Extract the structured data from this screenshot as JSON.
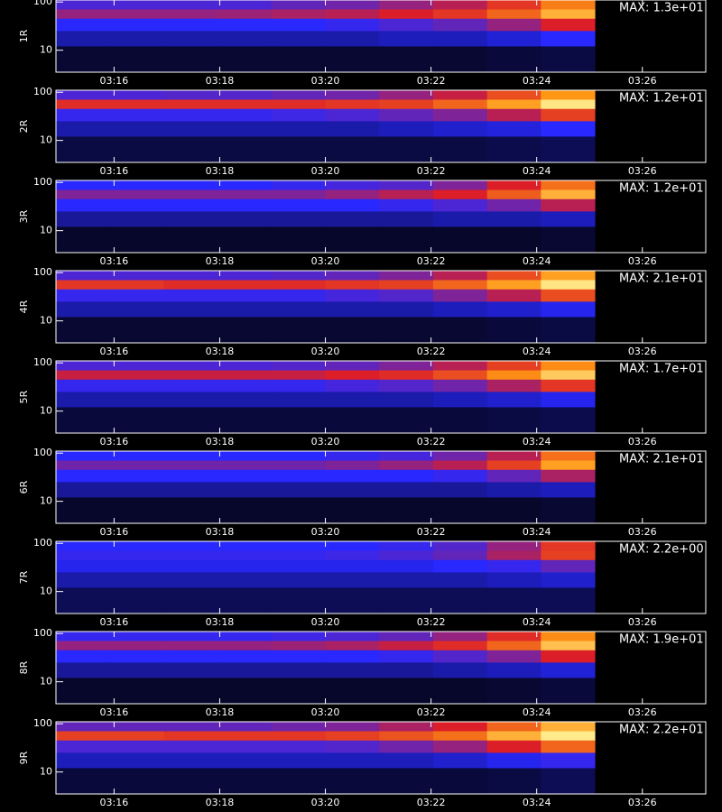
{
  "chart_data": {
    "type": "heatmap",
    "xlim": [
      14.9,
      27.2
    ],
    "xticks": [
      {
        "value": 16,
        "label": "03:16"
      },
      {
        "value": 18,
        "label": "03:18"
      },
      {
        "value": 20,
        "label": "03:20"
      },
      {
        "value": 22,
        "label": "03:22"
      },
      {
        "value": 24,
        "label": "03:24"
      },
      {
        "value": 26,
        "label": "03:26"
      }
    ],
    "ylim": [
      3.5,
      110
    ],
    "yticks": [
      10,
      100
    ],
    "log_y": true,
    "zlim": [
      0,
      1
    ],
    "x_edges": [
      14.9,
      15.92,
      16.94,
      17.96,
      18.98,
      20.0,
      21.02,
      22.04,
      23.06,
      24.08,
      25.1
    ],
    "y_edges": [
      110,
      70,
      45,
      25,
      12,
      3.5
    ],
    "panels": [
      {
        "label": "1R",
        "annotation": "MAX: 1.3e+01",
        "values": [
          [
            0.35,
            0.35,
            0.35,
            0.35,
            0.38,
            0.4,
            0.45,
            0.5,
            0.6,
            0.75
          ],
          [
            0.45,
            0.45,
            0.45,
            0.46,
            0.48,
            0.5,
            0.55,
            0.6,
            0.7,
            0.85
          ],
          [
            0.3,
            0.3,
            0.3,
            0.3,
            0.3,
            0.32,
            0.35,
            0.38,
            0.45,
            0.55
          ],
          [
            0.2,
            0.2,
            0.2,
            0.2,
            0.2,
            0.2,
            0.22,
            0.22,
            0.25,
            0.3
          ],
          [
            0.06,
            0.06,
            0.06,
            0.06,
            0.06,
            0.06,
            0.06,
            0.06,
            0.07,
            0.08
          ]
        ]
      },
      {
        "label": "2R",
        "annotation": "MAX: 1.2e+01",
        "values": [
          [
            0.35,
            0.35,
            0.36,
            0.36,
            0.38,
            0.4,
            0.45,
            0.52,
            0.65,
            0.8
          ],
          [
            0.58,
            0.58,
            0.58,
            0.58,
            0.58,
            0.6,
            0.62,
            0.7,
            0.82,
            0.95
          ],
          [
            0.32,
            0.32,
            0.32,
            0.32,
            0.33,
            0.35,
            0.38,
            0.42,
            0.5,
            0.62
          ],
          [
            0.2,
            0.2,
            0.2,
            0.2,
            0.2,
            0.2,
            0.22,
            0.24,
            0.26,
            0.3
          ],
          [
            0.08,
            0.08,
            0.08,
            0.08,
            0.08,
            0.08,
            0.08,
            0.08,
            0.09,
            0.1
          ]
        ]
      },
      {
        "label": "3R",
        "annotation": "MAX: 1.2e+01",
        "values": [
          [
            0.3,
            0.3,
            0.3,
            0.3,
            0.32,
            0.34,
            0.36,
            0.42,
            0.55,
            0.72
          ],
          [
            0.42,
            0.42,
            0.42,
            0.42,
            0.42,
            0.45,
            0.5,
            0.55,
            0.68,
            0.85
          ],
          [
            0.3,
            0.3,
            0.3,
            0.3,
            0.3,
            0.3,
            0.32,
            0.35,
            0.4,
            0.5
          ],
          [
            0.18,
            0.18,
            0.18,
            0.18,
            0.18,
            0.18,
            0.18,
            0.2,
            0.2,
            0.22
          ],
          [
            0.05,
            0.05,
            0.05,
            0.05,
            0.05,
            0.05,
            0.05,
            0.05,
            0.05,
            0.06
          ]
        ]
      },
      {
        "label": "4R",
        "annotation": "MAX: 2.1e+01",
        "values": [
          [
            0.35,
            0.35,
            0.35,
            0.35,
            0.36,
            0.38,
            0.42,
            0.5,
            0.65,
            0.82
          ],
          [
            0.6,
            0.6,
            0.58,
            0.58,
            0.58,
            0.6,
            0.62,
            0.7,
            0.82,
            0.95
          ],
          [
            0.32,
            0.32,
            0.32,
            0.32,
            0.32,
            0.34,
            0.36,
            0.42,
            0.5,
            0.65
          ],
          [
            0.2,
            0.2,
            0.2,
            0.2,
            0.2,
            0.2,
            0.2,
            0.22,
            0.24,
            0.28
          ],
          [
            0.06,
            0.06,
            0.06,
            0.06,
            0.06,
            0.06,
            0.06,
            0.06,
            0.07,
            0.08
          ]
        ]
      },
      {
        "label": "5R",
        "annotation": "MAX: 1.7e+01",
        "values": [
          [
            0.35,
            0.35,
            0.35,
            0.35,
            0.36,
            0.38,
            0.42,
            0.5,
            0.62,
            0.78
          ],
          [
            0.52,
            0.52,
            0.52,
            0.52,
            0.52,
            0.55,
            0.58,
            0.65,
            0.78,
            0.9
          ],
          [
            0.32,
            0.32,
            0.32,
            0.32,
            0.32,
            0.34,
            0.36,
            0.4,
            0.48,
            0.6
          ],
          [
            0.2,
            0.2,
            0.2,
            0.2,
            0.2,
            0.2,
            0.2,
            0.22,
            0.24,
            0.28
          ],
          [
            0.07,
            0.07,
            0.07,
            0.07,
            0.07,
            0.07,
            0.07,
            0.07,
            0.08,
            0.09
          ]
        ]
      },
      {
        "label": "6R",
        "annotation": "MAX: 2.1e+01",
        "values": [
          [
            0.3,
            0.3,
            0.3,
            0.3,
            0.3,
            0.32,
            0.34,
            0.4,
            0.5,
            0.72
          ],
          [
            0.4,
            0.4,
            0.4,
            0.4,
            0.4,
            0.42,
            0.45,
            0.5,
            0.62,
            0.82
          ],
          [
            0.3,
            0.3,
            0.3,
            0.3,
            0.3,
            0.3,
            0.3,
            0.32,
            0.38,
            0.48
          ],
          [
            0.18,
            0.18,
            0.18,
            0.18,
            0.18,
            0.18,
            0.18,
            0.18,
            0.2,
            0.22
          ],
          [
            0.05,
            0.05,
            0.05,
            0.05,
            0.05,
            0.05,
            0.05,
            0.05,
            0.05,
            0.06
          ]
        ]
      },
      {
        "label": "7R",
        "annotation": "MAX: 2.2e+00",
        "values": [
          [
            0.3,
            0.3,
            0.3,
            0.3,
            0.3,
            0.3,
            0.32,
            0.36,
            0.45,
            0.6
          ],
          [
            0.32,
            0.32,
            0.32,
            0.32,
            0.32,
            0.33,
            0.35,
            0.38,
            0.48,
            0.62
          ],
          [
            0.28,
            0.28,
            0.28,
            0.28,
            0.28,
            0.28,
            0.28,
            0.3,
            0.32,
            0.38
          ],
          [
            0.2,
            0.2,
            0.2,
            0.2,
            0.2,
            0.2,
            0.2,
            0.2,
            0.22,
            0.24
          ],
          [
            0.1,
            0.1,
            0.1,
            0.1,
            0.1,
            0.1,
            0.1,
            0.1,
            0.1,
            0.1
          ]
        ]
      },
      {
        "label": "8R",
        "annotation": "MAX: 1.9e+01",
        "values": [
          [
            0.32,
            0.32,
            0.32,
            0.32,
            0.33,
            0.35,
            0.38,
            0.45,
            0.58,
            0.78
          ],
          [
            0.45,
            0.45,
            0.45,
            0.45,
            0.46,
            0.48,
            0.52,
            0.58,
            0.7,
            0.88
          ],
          [
            0.3,
            0.3,
            0.3,
            0.3,
            0.3,
            0.3,
            0.32,
            0.36,
            0.42,
            0.55
          ],
          [
            0.18,
            0.18,
            0.18,
            0.18,
            0.18,
            0.18,
            0.18,
            0.2,
            0.22,
            0.25
          ],
          [
            0.05,
            0.05,
            0.05,
            0.05,
            0.05,
            0.05,
            0.05,
            0.05,
            0.06,
            0.07
          ]
        ]
      },
      {
        "label": "9R",
        "annotation": "MAX: 2.2e+01",
        "values": [
          [
            0.38,
            0.38,
            0.38,
            0.38,
            0.4,
            0.42,
            0.48,
            0.55,
            0.7,
            0.85
          ],
          [
            0.62,
            0.62,
            0.6,
            0.6,
            0.6,
            0.62,
            0.66,
            0.72,
            0.85,
            0.96
          ],
          [
            0.35,
            0.35,
            0.35,
            0.35,
            0.35,
            0.36,
            0.4,
            0.45,
            0.55,
            0.7
          ],
          [
            0.22,
            0.22,
            0.22,
            0.22,
            0.22,
            0.22,
            0.22,
            0.24,
            0.28,
            0.32
          ],
          [
            0.07,
            0.07,
            0.07,
            0.07,
            0.07,
            0.07,
            0.07,
            0.07,
            0.08,
            0.1
          ]
        ]
      }
    ]
  }
}
